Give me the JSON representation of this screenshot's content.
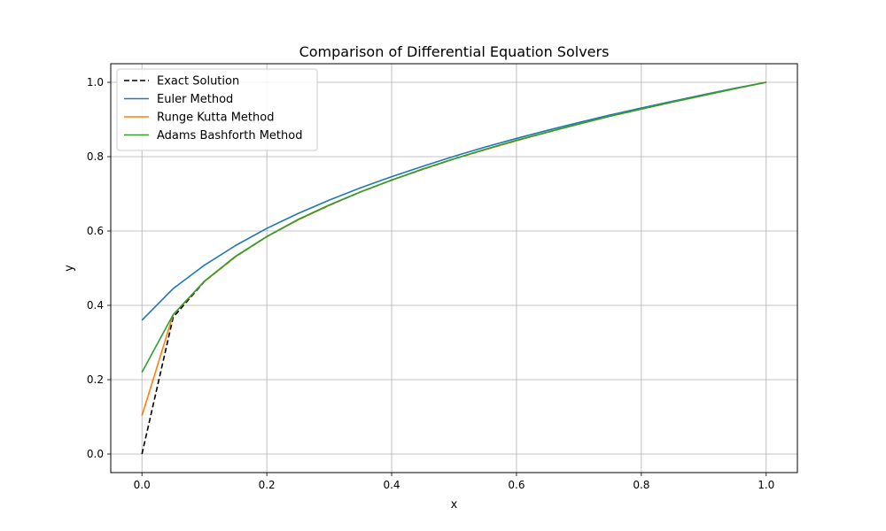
{
  "chart_data": {
    "type": "line",
    "title": "Comparison of Differential Equation Solvers",
    "xlabel": "x",
    "ylabel": "y",
    "xlim": [
      -0.05,
      1.05
    ],
    "ylim": [
      -0.05,
      1.05
    ],
    "xticks": [
      0.0,
      0.2,
      0.4,
      0.6,
      0.8,
      1.0
    ],
    "xtick_labels": [
      "0.0",
      "0.2",
      "0.4",
      "0.6",
      "0.8",
      "1.0"
    ],
    "yticks": [
      0.0,
      0.2,
      0.4,
      0.6,
      0.8,
      1.0
    ],
    "ytick_labels": [
      "0.0",
      "0.2",
      "0.4",
      "0.6",
      "0.8",
      "1.0"
    ],
    "grid": true,
    "legend_position": "top-left",
    "x": [
      0.0,
      0.05,
      0.1,
      0.15,
      0.2,
      0.25,
      0.3,
      0.35,
      0.4,
      0.45,
      0.5,
      0.55,
      0.6,
      0.65,
      0.7,
      0.75,
      0.8,
      0.85,
      0.9,
      0.95,
      1.0
    ],
    "series": [
      {
        "name": "Exact Solution",
        "color": "#000000",
        "dashed": true,
        "values": [
          0.0,
          0.368,
          0.464,
          0.531,
          0.585,
          0.63,
          0.669,
          0.705,
          0.737,
          0.766,
          0.794,
          0.819,
          0.843,
          0.866,
          0.888,
          0.909,
          0.928,
          0.947,
          0.965,
          0.983,
          1.0
        ]
      },
      {
        "name": "Euler Method",
        "color": "#1f77b4",
        "dashed": false,
        "values": [
          0.36,
          0.445,
          0.508,
          0.561,
          0.607,
          0.647,
          0.683,
          0.716,
          0.746,
          0.774,
          0.801,
          0.826,
          0.849,
          0.871,
          0.892,
          0.912,
          0.931,
          0.949,
          0.967,
          0.984,
          1.0
        ]
      },
      {
        "name": "Runge Kutta Method",
        "color": "#ff7f0e",
        "dashed": false,
        "values": [
          0.103,
          0.375,
          0.464,
          0.531,
          0.585,
          0.63,
          0.669,
          0.705,
          0.737,
          0.766,
          0.794,
          0.819,
          0.843,
          0.866,
          0.888,
          0.909,
          0.928,
          0.947,
          0.965,
          0.983,
          1.0
        ]
      },
      {
        "name": "Adams Bashforth Method",
        "color": "#2ca02c",
        "dashed": false,
        "values": [
          0.22,
          0.375,
          0.465,
          0.532,
          0.585,
          0.631,
          0.67,
          0.705,
          0.737,
          0.767,
          0.794,
          0.82,
          0.844,
          0.866,
          0.888,
          0.909,
          0.928,
          0.947,
          0.965,
          0.983,
          1.0
        ]
      }
    ]
  }
}
